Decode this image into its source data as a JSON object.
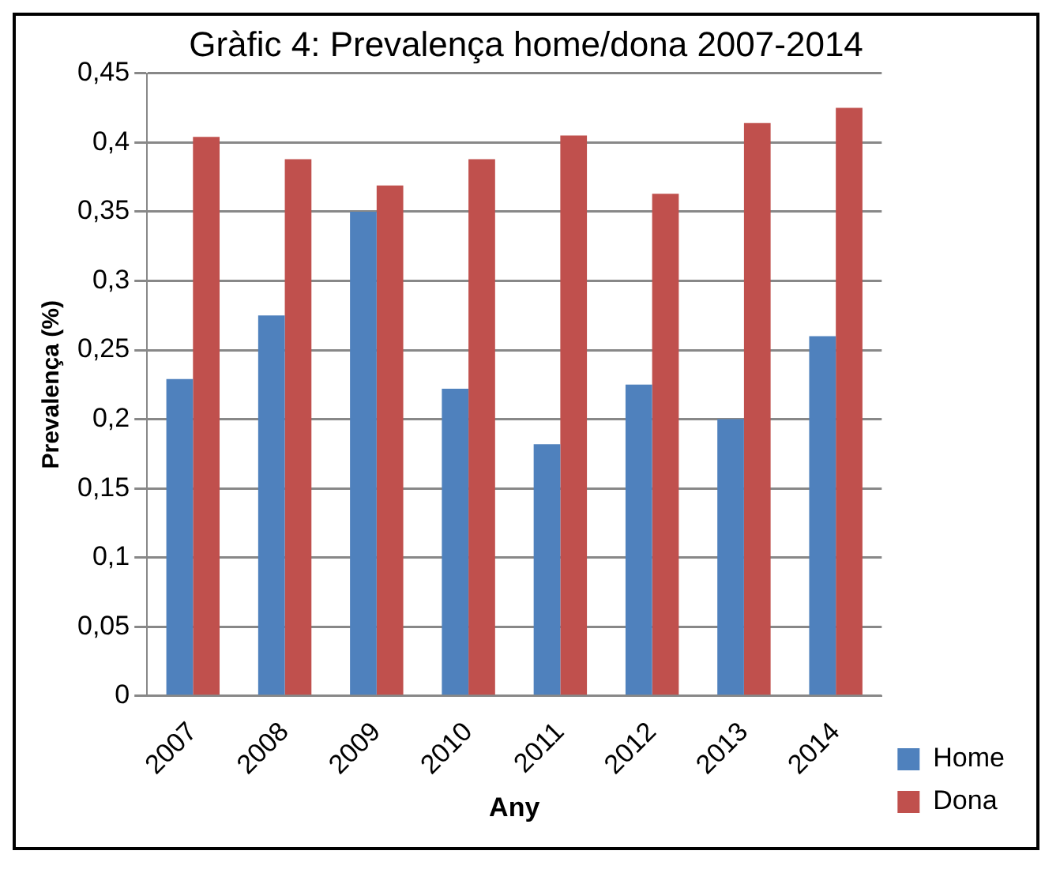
{
  "chart_data": {
    "type": "bar",
    "title": "Gràfic 4: Prevalença home/dona 2007-2014",
    "xlabel": "Any",
    "ylabel": "Prevalença (%)",
    "categories": [
      "2007",
      "2008",
      "2009",
      "2010",
      "2011",
      "2012",
      "2013",
      "2014"
    ],
    "series": [
      {
        "name": "Home",
        "color": "#4f81bd",
        "values": [
          0.229,
          0.275,
          0.35,
          0.222,
          0.182,
          0.225,
          0.2,
          0.26
        ]
      },
      {
        "name": "Dona",
        "color": "#c0504d",
        "values": [
          0.404,
          0.388,
          0.369,
          0.388,
          0.405,
          0.363,
          0.414,
          0.425
        ]
      }
    ],
    "ylim": [
      0,
      0.45
    ],
    "yticks": [
      0,
      {
        "value": 0.05,
        "label": "0,05"
      },
      {
        "value": 0.1,
        "label": "0,1"
      },
      {
        "value": 0.15,
        "label": "0,15"
      },
      {
        "value": 0.2,
        "label": "0,2"
      },
      {
        "value": 0.25,
        "label": "0,25"
      },
      {
        "value": 0.3,
        "label": "0,3"
      },
      {
        "value": 0.35,
        "label": "0,35"
      },
      {
        "value": 0.4,
        "label": "0,4"
      },
      {
        "value": 0.45,
        "label": "0,45"
      }
    ],
    "grid": "y",
    "legend": "bottom right"
  }
}
